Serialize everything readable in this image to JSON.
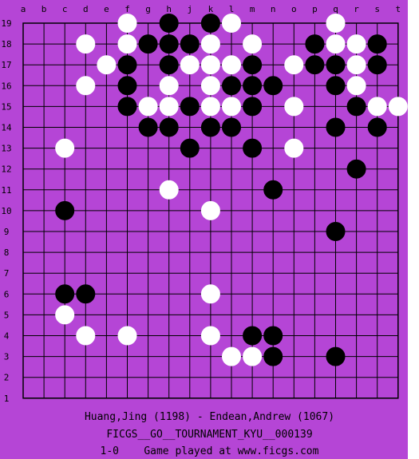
{
  "board": {
    "size": 19,
    "background_color": "#b545d6",
    "line_color": "#000000",
    "column_labels": [
      "a",
      "b",
      "c",
      "d",
      "e",
      "f",
      "g",
      "h",
      "j",
      "k",
      "l",
      "m",
      "n",
      "o",
      "p",
      "q",
      "r",
      "s",
      "t"
    ],
    "row_labels": [
      "19",
      "18",
      "17",
      "16",
      "15",
      "14",
      "13",
      "12",
      "11",
      "10",
      "9",
      "8",
      "7",
      "6",
      "5",
      "4",
      "3",
      "2",
      "1"
    ],
    "stones": [
      {
        "pos": "f19",
        "color": "white"
      },
      {
        "pos": "h19",
        "color": "black"
      },
      {
        "pos": "k19",
        "color": "black"
      },
      {
        "pos": "l19",
        "color": "white"
      },
      {
        "pos": "q19",
        "color": "white"
      },
      {
        "pos": "d18",
        "color": "white"
      },
      {
        "pos": "f18",
        "color": "white"
      },
      {
        "pos": "g18",
        "color": "black"
      },
      {
        "pos": "h18",
        "color": "black"
      },
      {
        "pos": "j18",
        "color": "black"
      },
      {
        "pos": "k18",
        "color": "white"
      },
      {
        "pos": "m18",
        "color": "white"
      },
      {
        "pos": "p18",
        "color": "black"
      },
      {
        "pos": "q18",
        "color": "white"
      },
      {
        "pos": "r18",
        "color": "white"
      },
      {
        "pos": "s18",
        "color": "black"
      },
      {
        "pos": "e17",
        "color": "white"
      },
      {
        "pos": "f17",
        "color": "black"
      },
      {
        "pos": "h17",
        "color": "black"
      },
      {
        "pos": "j17",
        "color": "white"
      },
      {
        "pos": "k17",
        "color": "white"
      },
      {
        "pos": "l17",
        "color": "white"
      },
      {
        "pos": "m17",
        "color": "black"
      },
      {
        "pos": "o17",
        "color": "white"
      },
      {
        "pos": "p17",
        "color": "black"
      },
      {
        "pos": "q17",
        "color": "black"
      },
      {
        "pos": "r17",
        "color": "white"
      },
      {
        "pos": "s17",
        "color": "black"
      },
      {
        "pos": "d16",
        "color": "white"
      },
      {
        "pos": "f16",
        "color": "black"
      },
      {
        "pos": "h16",
        "color": "white"
      },
      {
        "pos": "k16",
        "color": "white"
      },
      {
        "pos": "l16",
        "color": "black"
      },
      {
        "pos": "m16",
        "color": "black"
      },
      {
        "pos": "n16",
        "color": "black"
      },
      {
        "pos": "q16",
        "color": "black"
      },
      {
        "pos": "r16",
        "color": "white"
      },
      {
        "pos": "f15",
        "color": "black"
      },
      {
        "pos": "g15",
        "color": "white"
      },
      {
        "pos": "h15",
        "color": "white"
      },
      {
        "pos": "j15",
        "color": "black"
      },
      {
        "pos": "k15",
        "color": "white"
      },
      {
        "pos": "l15",
        "color": "white"
      },
      {
        "pos": "m15",
        "color": "black"
      },
      {
        "pos": "o15",
        "color": "white"
      },
      {
        "pos": "r15",
        "color": "black"
      },
      {
        "pos": "s15",
        "color": "white"
      },
      {
        "pos": "t15",
        "color": "white"
      },
      {
        "pos": "g14",
        "color": "black"
      },
      {
        "pos": "h14",
        "color": "black"
      },
      {
        "pos": "k14",
        "color": "black"
      },
      {
        "pos": "l14",
        "color": "black"
      },
      {
        "pos": "q14",
        "color": "black"
      },
      {
        "pos": "s14",
        "color": "black"
      },
      {
        "pos": "c13",
        "color": "white"
      },
      {
        "pos": "j13",
        "color": "black"
      },
      {
        "pos": "m13",
        "color": "black"
      },
      {
        "pos": "o13",
        "color": "white"
      },
      {
        "pos": "r12",
        "color": "black"
      },
      {
        "pos": "h11",
        "color": "white"
      },
      {
        "pos": "n11",
        "color": "black"
      },
      {
        "pos": "c10",
        "color": "black"
      },
      {
        "pos": "k10",
        "color": "white"
      },
      {
        "pos": "q9",
        "color": "black"
      },
      {
        "pos": "c6",
        "color": "black"
      },
      {
        "pos": "d6",
        "color": "black"
      },
      {
        "pos": "k6",
        "color": "white"
      },
      {
        "pos": "c5",
        "color": "white"
      },
      {
        "pos": "d4",
        "color": "white"
      },
      {
        "pos": "f4",
        "color": "white"
      },
      {
        "pos": "k4",
        "color": "white"
      },
      {
        "pos": "m4",
        "color": "black"
      },
      {
        "pos": "n4",
        "color": "black"
      },
      {
        "pos": "l3",
        "color": "white"
      },
      {
        "pos": "m3",
        "color": "white"
      },
      {
        "pos": "n3",
        "color": "black"
      },
      {
        "pos": "q3",
        "color": "black"
      }
    ]
  },
  "footer": {
    "players": "Huang,Jing (1198) - Endean,Andrew (1067)",
    "tournament": "FICGS__GO__TOURNAMENT_KYU__000139",
    "result": "1-0    Game played at www.ficgs.com"
  }
}
